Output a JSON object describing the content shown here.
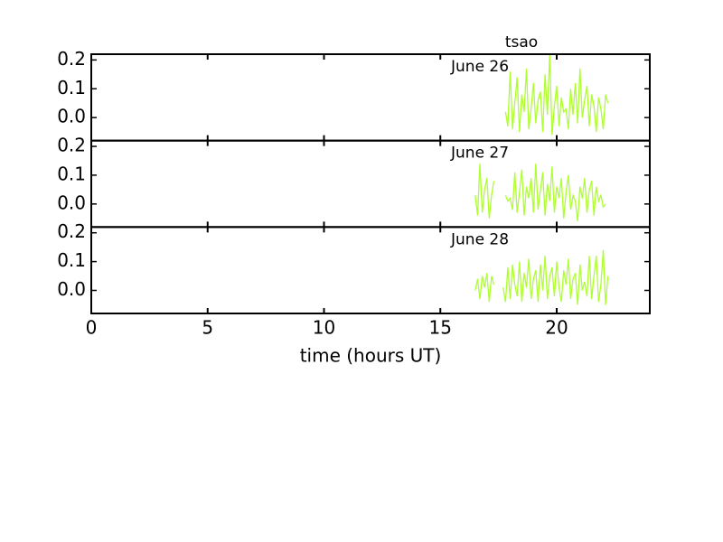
{
  "chart_data": [
    {
      "type": "line",
      "annotation": "June 26",
      "xlim": [
        0,
        24
      ],
      "xticks": [
        0,
        5,
        10,
        15,
        20
      ],
      "ylim": [
        -0.08,
        0.22
      ],
      "yticks": [
        {
          "value": 0,
          "label": "0.0"
        },
        0.1,
        0.2
      ],
      "x": [
        16.5,
        16.6,
        16.7,
        16.8,
        16.9,
        17.0,
        17.1,
        17.2,
        17.3,
        17.4,
        17.5,
        17.6,
        17.7,
        17.8,
        17.9,
        18.0,
        18.1,
        18.2,
        18.3,
        18.4,
        18.5,
        18.6,
        18.7,
        18.8,
        18.9,
        19.0,
        19.1,
        19.2,
        19.3,
        19.4,
        19.5,
        19.6,
        19.7,
        19.8,
        19.9,
        20.0,
        20.1,
        20.2,
        20.3,
        20.4,
        20.5,
        20.6,
        20.7,
        20.8,
        20.9,
        21.0,
        21.1,
        21.2,
        21.3,
        21.4,
        21.5,
        21.6,
        21.7,
        21.8,
        21.9,
        22.0,
        22.1,
        22.2
      ],
      "series": [
        {
          "name": "tsao",
          "color": "#adff2f",
          "values": [
            null,
            null,
            null,
            null,
            null,
            null,
            null,
            null,
            null,
            null,
            null,
            null,
            null,
            0.02,
            -0.03,
            0.16,
            -0.04,
            0.05,
            0.14,
            -0.05,
            0.08,
            0.02,
            0.17,
            -0.04,
            0.03,
            0.12,
            -0.02,
            0.06,
            0.09,
            -0.05,
            0.15,
            0.01,
            0.22,
            -0.06,
            0.04,
            0.11,
            -0.03,
            0.07,
            0.02,
            0.03,
            -0.04,
            0.1,
            0.01,
            0.12,
            -0.02,
            0.17,
            0.0,
            0.06,
            0.11,
            -0.03,
            0.08,
            0.04,
            -0.05,
            0.07,
            0.03,
            -0.04,
            0.08,
            0.05
          ]
        }
      ]
    },
    {
      "type": "line",
      "annotation": "June 27",
      "xlim": [
        0,
        24
      ],
      "xticks": [
        0,
        5,
        10,
        15,
        20
      ],
      "ylim": [
        -0.08,
        0.22
      ],
      "yticks": [
        {
          "value": 0,
          "label": "0.0"
        },
        0.1,
        0.2
      ],
      "x": [
        16.5,
        16.6,
        16.7,
        16.8,
        16.9,
        17.0,
        17.1,
        17.2,
        17.3,
        17.4,
        17.5,
        17.6,
        17.7,
        17.8,
        17.9,
        18.0,
        18.1,
        18.2,
        18.3,
        18.4,
        18.5,
        18.6,
        18.7,
        18.8,
        18.9,
        19.0,
        19.1,
        19.2,
        19.3,
        19.4,
        19.5,
        19.6,
        19.7,
        19.8,
        19.9,
        20.0,
        20.1,
        20.2,
        20.3,
        20.4,
        20.5,
        20.6,
        20.7,
        20.8,
        20.9,
        21.0,
        21.1,
        21.2,
        21.3,
        21.4,
        21.5,
        21.6,
        21.7,
        21.8,
        21.9,
        22.0,
        22.1,
        22.2
      ],
      "series": [
        {
          "color": "#adff2f",
          "values": [
            0.03,
            -0.04,
            0.14,
            -0.03,
            0.05,
            0.09,
            -0.05,
            0.03,
            0.08,
            null,
            null,
            null,
            null,
            0.03,
            0.01,
            0.02,
            -0.02,
            0.11,
            -0.03,
            0.04,
            0.12,
            -0.04,
            0.06,
            0.02,
            0.09,
            -0.03,
            0.14,
            -0.02,
            0.05,
            0.11,
            -0.04,
            0.07,
            0.01,
            0.13,
            -0.03,
            0.06,
            0.02,
            0.09,
            -0.05,
            0.04,
            0.1,
            -0.02,
            0.03,
            0.01,
            -0.06,
            0.06,
            0.02,
            0.09,
            -0.03,
            0.05,
            0.08,
            -0.04,
            0.06,
            0.01,
            0.03,
            -0.01,
            0.0,
            null
          ]
        }
      ]
    },
    {
      "type": "line",
      "annotation": "June 28",
      "xlabel": "time (hours UT)",
      "xlim": [
        0,
        24
      ],
      "xticks": [
        0,
        5,
        10,
        15,
        20
      ],
      "ylim": [
        -0.08,
        0.22
      ],
      "yticks": [
        {
          "value": 0,
          "label": "0.0"
        },
        0.1,
        0.2
      ],
      "x": [
        16.5,
        16.6,
        16.7,
        16.8,
        16.9,
        17.0,
        17.1,
        17.2,
        17.3,
        17.4,
        17.5,
        17.6,
        17.7,
        17.8,
        17.9,
        18.0,
        18.1,
        18.2,
        18.3,
        18.4,
        18.5,
        18.6,
        18.7,
        18.8,
        18.9,
        19.0,
        19.1,
        19.2,
        19.3,
        19.4,
        19.5,
        19.6,
        19.7,
        19.8,
        19.9,
        20.0,
        20.1,
        20.2,
        20.3,
        20.4,
        20.5,
        20.6,
        20.7,
        20.8,
        20.9,
        21.0,
        21.1,
        21.2,
        21.3,
        21.4,
        21.5,
        21.6,
        21.7,
        21.8,
        21.9,
        22.0,
        22.1,
        22.2
      ],
      "series": [
        {
          "color": "#adff2f",
          "values": [
            0.0,
            0.04,
            -0.03,
            0.05,
            0.01,
            0.06,
            -0.04,
            0.05,
            0.02,
            null,
            null,
            null,
            0.01,
            -0.04,
            0.08,
            -0.03,
            0.09,
            0.02,
            -0.02,
            0.1,
            -0.04,
            0.06,
            0.01,
            0.11,
            -0.03,
            0.04,
            0.07,
            -0.04,
            0.09,
            0.0,
            0.12,
            -0.03,
            0.05,
            0.08,
            -0.02,
            0.1,
            0.01,
            -0.04,
            0.07,
            0.02,
            0.11,
            -0.03,
            0.04,
            0.06,
            -0.05,
            0.09,
            0.0,
            0.03,
            -0.02,
            0.12,
            -0.03,
            0.05,
            0.12,
            -0.04,
            0.02,
            0.14,
            -0.05,
            0.05
          ]
        }
      ]
    }
  ]
}
